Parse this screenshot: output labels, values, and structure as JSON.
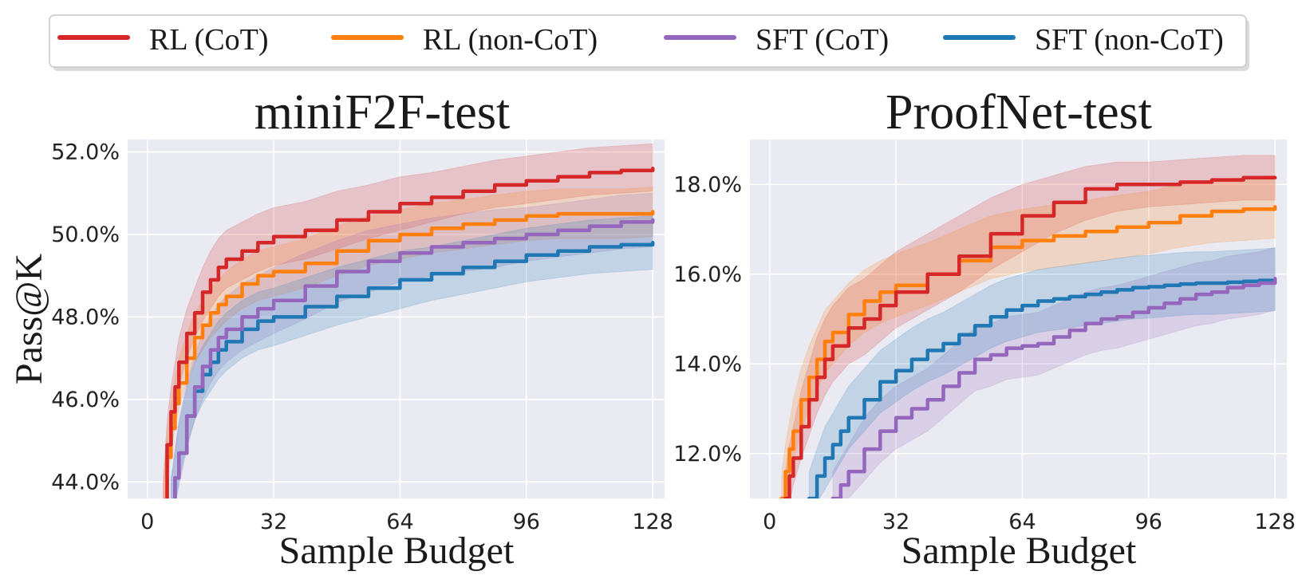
{
  "legend": {
    "placement": "top-center",
    "items": [
      {
        "label": "RL (CoT)",
        "color": "#d62728"
      },
      {
        "label": "RL (non-CoT)",
        "color": "#ff7f0e"
      },
      {
        "label": "SFT (CoT)",
        "color": "#9467bd"
      },
      {
        "label": "SFT (non-CoT)",
        "color": "#1f77b4"
      }
    ]
  },
  "style": {
    "plot_background": "#eaeaf2",
    "grid_color": "#ffffff",
    "grid": true
  },
  "chart_data": [
    {
      "type": "line",
      "title": "miniF2F-test",
      "xlabel": "Sample Budget",
      "ylabel": "Pass@K",
      "xlim": [
        -5,
        131
      ],
      "ylim": [
        43.6,
        52.3
      ],
      "xticks": [
        0,
        32,
        64,
        96,
        128
      ],
      "yticks": [
        44.0,
        46.0,
        48.0,
        50.0,
        52.0
      ],
      "ytick_labels": [
        "44.0%",
        "46.0%",
        "48.0%",
        "50.0%",
        "52.0%"
      ],
      "series": [
        {
          "name": "RL (CoT)",
          "x": [
            4,
            5,
            6,
            7,
            8,
            10,
            12,
            14,
            16,
            18,
            20,
            24,
            28,
            32,
            40,
            48,
            56,
            64,
            72,
            80,
            88,
            96,
            104,
            112,
            120,
            128
          ],
          "y": [
            43.5,
            44.9,
            45.7,
            46.3,
            46.9,
            47.6,
            48.1,
            48.6,
            48.9,
            49.2,
            49.4,
            49.6,
            49.8,
            49.95,
            50.1,
            50.35,
            50.55,
            50.75,
            50.9,
            51.05,
            51.2,
            51.3,
            51.4,
            51.5,
            51.55,
            51.6
          ],
          "band": [
            [
              43.0,
              44.3,
              45.1,
              45.7,
              46.3,
              47.0,
              47.5,
              47.9,
              48.2,
              48.5,
              48.7,
              48.9,
              49.1,
              49.25,
              49.4,
              49.65,
              49.9,
              50.1,
              50.3,
              50.5,
              50.65,
              50.75,
              50.85,
              50.95,
              51.0,
              51.05
            ],
            [
              44.0,
              45.5,
              46.3,
              46.9,
              47.5,
              48.2,
              48.7,
              49.2,
              49.6,
              49.9,
              50.1,
              50.3,
              50.5,
              50.65,
              50.8,
              51.05,
              51.2,
              51.4,
              51.5,
              51.65,
              51.8,
              51.9,
              52.0,
              52.1,
              52.15,
              52.2
            ]
          ]
        },
        {
          "name": "RL (non-CoT)",
          "x": [
            4,
            5,
            6,
            7,
            8,
            10,
            12,
            14,
            16,
            18,
            20,
            24,
            28,
            32,
            40,
            48,
            56,
            64,
            72,
            80,
            88,
            96,
            104,
            112,
            120,
            128
          ],
          "y": [
            43.4,
            44.6,
            45.3,
            45.9,
            46.4,
            47.0,
            47.5,
            47.8,
            48.1,
            48.3,
            48.5,
            48.8,
            49.0,
            49.1,
            49.3,
            49.6,
            49.85,
            50.0,
            50.15,
            50.25,
            50.35,
            50.45,
            50.5,
            50.5,
            50.5,
            50.55
          ],
          "band": [
            [
              42.9,
              44.0,
              44.7,
              45.3,
              45.8,
              46.4,
              46.9,
              47.2,
              47.5,
              47.7,
              47.9,
              48.2,
              48.4,
              48.5,
              48.7,
              49.0,
              49.25,
              49.4,
              49.55,
              49.65,
              49.75,
              49.85,
              49.9,
              49.9,
              49.9,
              49.95
            ],
            [
              43.9,
              45.2,
              45.9,
              46.5,
              47.0,
              47.6,
              48.1,
              48.4,
              48.7,
              48.9,
              49.1,
              49.4,
              49.6,
              49.7,
              49.9,
              50.2,
              50.45,
              50.6,
              50.75,
              50.85,
              50.95,
              51.05,
              51.1,
              51.1,
              51.1,
              51.15
            ]
          ]
        },
        {
          "name": "SFT (CoT)",
          "x": [
            6,
            7,
            8,
            10,
            12,
            14,
            16,
            18,
            20,
            24,
            28,
            32,
            40,
            48,
            56,
            64,
            72,
            80,
            88,
            96,
            104,
            112,
            120,
            128
          ],
          "y": [
            43.4,
            44.1,
            44.7,
            45.6,
            46.3,
            46.8,
            47.2,
            47.5,
            47.7,
            48.0,
            48.2,
            48.4,
            48.75,
            49.1,
            49.35,
            49.55,
            49.7,
            49.8,
            49.9,
            50.0,
            50.1,
            50.2,
            50.3,
            50.35
          ],
          "band": [
            [
              42.8,
              43.4,
              43.9,
              44.8,
              45.5,
              46.0,
              46.4,
              46.7,
              46.9,
              47.2,
              47.4,
              47.6,
              47.95,
              48.35,
              48.6,
              48.85,
              49.0,
              49.1,
              49.2,
              49.35,
              49.45,
              49.55,
              49.65,
              49.7
            ],
            [
              44.0,
              44.8,
              45.5,
              46.4,
              47.1,
              47.6,
              48.0,
              48.3,
              48.5,
              48.8,
              49.0,
              49.2,
              49.55,
              49.85,
              50.1,
              50.25,
              50.4,
              50.5,
              50.6,
              50.65,
              50.75,
              50.85,
              50.95,
              51.0
            ]
          ]
        },
        {
          "name": "SFT (non-CoT)",
          "x": [
            6,
            7,
            8,
            10,
            12,
            14,
            16,
            18,
            20,
            24,
            28,
            32,
            40,
            48,
            56,
            64,
            72,
            80,
            88,
            96,
            104,
            112,
            120,
            128
          ],
          "y": [
            43.5,
            44.1,
            44.7,
            45.6,
            46.2,
            46.6,
            46.9,
            47.2,
            47.4,
            47.7,
            47.9,
            48.0,
            48.25,
            48.5,
            48.7,
            48.9,
            49.05,
            49.2,
            49.35,
            49.5,
            49.6,
            49.7,
            49.75,
            49.8
          ],
          "band": [
            [
              42.9,
              43.5,
              44.0,
              44.9,
              45.5,
              45.9,
              46.2,
              46.5,
              46.7,
              47.0,
              47.2,
              47.3,
              47.55,
              47.8,
              48.0,
              48.2,
              48.4,
              48.55,
              48.7,
              48.85,
              48.95,
              49.05,
              49.1,
              49.15
            ],
            [
              44.1,
              44.7,
              45.4,
              46.3,
              46.9,
              47.3,
              47.6,
              47.9,
              48.1,
              48.4,
              48.6,
              48.7,
              48.95,
              49.2,
              49.4,
              49.6,
              49.7,
              49.85,
              50.0,
              50.15,
              50.25,
              50.35,
              50.4,
              50.45
            ]
          ]
        }
      ]
    },
    {
      "type": "line",
      "title": "ProofNet-test",
      "xlabel": "Sample Budget",
      "ylabel": "",
      "xlim": [
        -5,
        131
      ],
      "ylim": [
        11.0,
        19.0
      ],
      "xticks": [
        0,
        32,
        64,
        96,
        128
      ],
      "yticks": [
        12.0,
        14.0,
        16.0,
        18.0
      ],
      "ytick_labels": [
        "12.0%",
        "14.0%",
        "16.0%",
        "18.0%"
      ],
      "series": [
        {
          "name": "RL (CoT)",
          "x": [
            4,
            5,
            6,
            8,
            10,
            12,
            14,
            16,
            20,
            24,
            28,
            32,
            40,
            48,
            56,
            64,
            72,
            80,
            88,
            96,
            104,
            112,
            120,
            128
          ],
          "y": [
            11.0,
            11.5,
            11.9,
            12.6,
            13.2,
            13.7,
            14.1,
            14.4,
            14.8,
            15.0,
            15.3,
            15.6,
            16.0,
            16.4,
            16.9,
            17.3,
            17.6,
            17.9,
            18.0,
            18.0,
            18.05,
            18.1,
            18.15,
            18.15
          ],
          "band": [
            [
              10.5,
              10.9,
              11.3,
              11.9,
              12.4,
              12.9,
              13.3,
              13.6,
              14.0,
              14.2,
              14.5,
              14.8,
              15.2,
              15.6,
              16.1,
              16.5,
              16.9,
              17.2,
              17.4,
              17.5,
              17.55,
              17.6,
              17.65,
              17.65
            ],
            [
              11.6,
              12.2,
              12.6,
              13.4,
              14.0,
              14.6,
              15.0,
              15.3,
              15.7,
              15.9,
              16.2,
              16.5,
              16.9,
              17.3,
              17.7,
              18.0,
              18.2,
              18.4,
              18.5,
              18.5,
              18.55,
              18.6,
              18.65,
              18.65
            ]
          ]
        },
        {
          "name": "RL (non-CoT)",
          "x": [
            3,
            4,
            5,
            6,
            8,
            10,
            12,
            14,
            16,
            20,
            24,
            28,
            32,
            40,
            48,
            56,
            64,
            72,
            80,
            88,
            96,
            104,
            112,
            120,
            128
          ],
          "y": [
            11.0,
            11.6,
            12.1,
            12.5,
            13.2,
            13.7,
            14.1,
            14.5,
            14.7,
            15.1,
            15.4,
            15.6,
            15.75,
            16.0,
            16.3,
            16.6,
            16.75,
            16.85,
            16.95,
            17.05,
            17.15,
            17.3,
            17.4,
            17.45,
            17.5
          ],
          "band": [
            [
              10.5,
              11.0,
              11.5,
              11.8,
              12.5,
              13.0,
              13.4,
              13.8,
              14.0,
              14.4,
              14.7,
              14.9,
              15.05,
              15.3,
              15.6,
              15.9,
              16.05,
              16.15,
              16.25,
              16.35,
              16.45,
              16.6,
              16.7,
              16.75,
              16.8
            ],
            [
              11.5,
              12.2,
              12.7,
              13.2,
              13.9,
              14.4,
              14.8,
              15.2,
              15.4,
              15.8,
              16.1,
              16.3,
              16.45,
              16.7,
              17.0,
              17.3,
              17.45,
              17.55,
              17.65,
              17.75,
              17.85,
              18.0,
              18.1,
              18.15,
              18.2
            ]
          ]
        },
        {
          "name": "SFT (CoT)",
          "x": [
            16,
            18,
            20,
            24,
            28,
            32,
            36,
            40,
            44,
            48,
            52,
            56,
            60,
            64,
            68,
            72,
            76,
            80,
            84,
            88,
            92,
            96,
            100,
            104,
            108,
            112,
            116,
            120,
            124,
            128
          ],
          "y": [
            11.0,
            11.3,
            11.6,
            12.1,
            12.5,
            12.8,
            13.0,
            13.2,
            13.5,
            13.8,
            14.1,
            14.2,
            14.35,
            14.4,
            14.45,
            14.6,
            14.75,
            14.9,
            15.0,
            15.05,
            15.15,
            15.25,
            15.35,
            15.45,
            15.55,
            15.6,
            15.7,
            15.75,
            15.8,
            15.9
          ],
          "band": [
            [
              10.4,
              10.7,
              11.0,
              11.4,
              11.8,
              12.1,
              12.3,
              12.5,
              12.8,
              13.1,
              13.4,
              13.5,
              13.65,
              13.7,
              13.75,
              13.9,
              14.05,
              14.2,
              14.3,
              14.35,
              14.45,
              14.55,
              14.65,
              14.75,
              14.85,
              14.9,
              15.0,
              15.05,
              15.1,
              15.2
            ],
            [
              11.6,
              11.9,
              12.2,
              12.8,
              13.2,
              13.5,
              13.7,
              13.9,
              14.2,
              14.5,
              14.8,
              14.9,
              15.05,
              15.1,
              15.15,
              15.3,
              15.45,
              15.6,
              15.7,
              15.75,
              15.85,
              15.95,
              16.05,
              16.15,
              16.25,
              16.3,
              16.4,
              16.45,
              16.5,
              16.6
            ]
          ]
        },
        {
          "name": "SFT (non-CoT)",
          "x": [
            10,
            12,
            14,
            16,
            18,
            20,
            24,
            28,
            32,
            36,
            40,
            44,
            48,
            52,
            56,
            60,
            64,
            68,
            72,
            76,
            80,
            84,
            88,
            92,
            96,
            100,
            104,
            108,
            112,
            116,
            120,
            124,
            128
          ],
          "y": [
            11.0,
            11.5,
            11.9,
            12.2,
            12.5,
            12.8,
            13.2,
            13.6,
            13.85,
            14.1,
            14.3,
            14.45,
            14.65,
            14.85,
            15.05,
            15.2,
            15.3,
            15.4,
            15.45,
            15.5,
            15.55,
            15.6,
            15.65,
            15.7,
            15.72,
            15.75,
            15.78,
            15.8,
            15.8,
            15.82,
            15.84,
            15.86,
            15.88
          ],
          "band": [
            [
              10.4,
              10.9,
              11.2,
              11.5,
              11.8,
              12.1,
              12.5,
              12.9,
              13.15,
              13.4,
              13.6,
              13.75,
              13.95,
              14.15,
              14.35,
              14.5,
              14.6,
              14.7,
              14.75,
              14.8,
              14.85,
              14.9,
              14.95,
              15.0,
              15.02,
              15.05,
              15.08,
              15.1,
              15.1,
              15.12,
              15.14,
              15.16,
              15.18
            ],
            [
              11.6,
              12.1,
              12.6,
              12.9,
              13.2,
              13.5,
              13.9,
              14.3,
              14.55,
              14.8,
              15.0,
              15.15,
              15.35,
              15.55,
              15.75,
              15.9,
              16.0,
              16.1,
              16.15,
              16.2,
              16.25,
              16.3,
              16.35,
              16.4,
              16.42,
              16.45,
              16.48,
              16.5,
              16.5,
              16.52,
              16.54,
              16.56,
              16.58
            ]
          ]
        }
      ]
    }
  ]
}
